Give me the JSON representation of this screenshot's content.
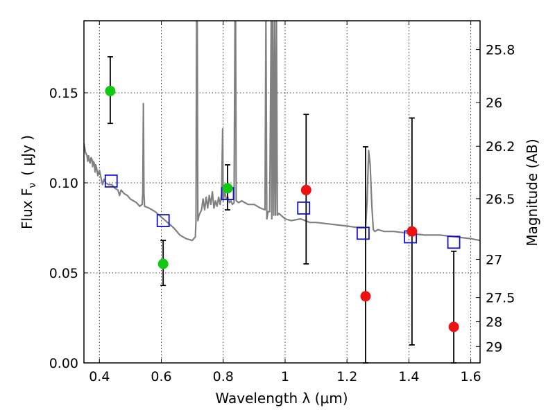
{
  "chart_data": {
    "type": "scatter",
    "xlabel": "Wavelength  λ (μm)",
    "ylabel": "Flux  F",
    "ylabel_sub": "ν",
    "ylabel_unit": "( μJy )",
    "y2label": "Magnitude (AB)",
    "xlim": [
      0.35,
      1.63
    ],
    "ylim": [
      0.0,
      0.19
    ],
    "x_ticks": [
      0.4,
      0.6,
      0.8,
      1.0,
      1.2,
      1.4,
      1.6
    ],
    "x_tick_labels": [
      "0.4",
      "0.6",
      "0.8",
      "1",
      "1.2",
      "1.4",
      "1.6"
    ],
    "y_ticks": [
      0.0,
      0.05,
      0.1,
      0.15
    ],
    "y_tick_labels": [
      "0.00",
      "0.05",
      "0.10",
      "0.15"
    ],
    "grid": true,
    "mag_ticks": [
      {
        "label": "25.8",
        "y": 0.174
      },
      {
        "label": "26",
        "y": 0.1446
      },
      {
        "label": "26.2",
        "y": 0.1203
      },
      {
        "label": "26.5",
        "y": 0.0912
      },
      {
        "label": "27",
        "y": 0.0575
      },
      {
        "label": "27.5",
        "y": 0.0363
      },
      {
        "label": "28",
        "y": 0.0229
      },
      {
        "label": "29",
        "y": 0.0091
      }
    ],
    "series": [
      {
        "marker": "circle",
        "color": "#12c812",
        "points": [
          {
            "x": 0.435,
            "y": 0.151,
            "ylo": 0.133,
            "yhi": 0.17
          },
          {
            "x": 0.606,
            "y": 0.055,
            "ylo": 0.043,
            "yhi": 0.068
          },
          {
            "x": 0.814,
            "y": 0.097,
            "ylo": 0.085,
            "yhi": 0.11
          }
        ]
      },
      {
        "marker": "circle",
        "color": "#ee1111",
        "points": [
          {
            "x": 1.068,
            "y": 0.096,
            "ylo": 0.055,
            "yhi": 0.138
          },
          {
            "x": 1.26,
            "y": 0.037,
            "ylo": 0.0,
            "yhi": 0.12
          },
          {
            "x": 1.41,
            "y": 0.073,
            "ylo": 0.01,
            "yhi": 0.136
          },
          {
            "x": 1.545,
            "y": 0.02,
            "ylo": 0.0,
            "yhi": 0.062
          }
        ]
      },
      {
        "marker": "square-open",
        "color": "#1010cc",
        "points": [
          {
            "x": 0.438,
            "y": 0.101
          },
          {
            "x": 0.606,
            "y": 0.079
          },
          {
            "x": 0.814,
            "y": 0.094
          },
          {
            "x": 1.06,
            "y": 0.086
          },
          {
            "x": 1.252,
            "y": 0.072
          },
          {
            "x": 1.405,
            "y": 0.07
          },
          {
            "x": 1.545,
            "y": 0.067
          }
        ]
      }
    ],
    "model_spectrum": {
      "color": "#808080",
      "points": [
        [
          0.35,
          0.122
        ],
        [
          0.355,
          0.117
        ],
        [
          0.36,
          0.115
        ],
        [
          0.362,
          0.112
        ],
        [
          0.365,
          0.115
        ],
        [
          0.368,
          0.112
        ],
        [
          0.37,
          0.111
        ],
        [
          0.373,
          0.114
        ],
        [
          0.376,
          0.113
        ],
        [
          0.378,
          0.109
        ],
        [
          0.38,
          0.112
        ],
        [
          0.383,
          0.111
        ],
        [
          0.386,
          0.106
        ],
        [
          0.388,
          0.11
        ],
        [
          0.391,
          0.108
        ],
        [
          0.395,
          0.104
        ],
        [
          0.4,
          0.107
        ],
        [
          0.405,
          0.103
        ],
        [
          0.41,
          0.099
        ],
        [
          0.415,
          0.102
        ],
        [
          0.42,
          0.1
        ],
        [
          0.43,
          0.099
        ],
        [
          0.44,
          0.099
        ],
        [
          0.45,
          0.097
        ],
        [
          0.46,
          0.096
        ],
        [
          0.465,
          0.093
        ],
        [
          0.47,
          0.096
        ],
        [
          0.48,
          0.094
        ],
        [
          0.49,
          0.093
        ],
        [
          0.5,
          0.091
        ],
        [
          0.51,
          0.09
        ],
        [
          0.52,
          0.089
        ],
        [
          0.53,
          0.087
        ],
        [
          0.538,
          0.088
        ],
        [
          0.54,
          0.094
        ],
        [
          0.542,
          0.144
        ],
        [
          0.544,
          0.094
        ],
        [
          0.546,
          0.087
        ],
        [
          0.56,
          0.086
        ],
        [
          0.58,
          0.084
        ],
        [
          0.6,
          0.081
        ],
        [
          0.62,
          0.078
        ],
        [
          0.64,
          0.075
        ],
        [
          0.66,
          0.071
        ],
        [
          0.68,
          0.069
        ],
        [
          0.7,
          0.068
        ],
        [
          0.71,
          0.07
        ],
        [
          0.712,
          0.079
        ],
        [
          0.714,
          0.19
        ],
        [
          0.716,
          0.19
        ],
        [
          0.718,
          0.079
        ],
        [
          0.722,
          0.082
        ],
        [
          0.73,
          0.085
        ],
        [
          0.735,
          0.091
        ],
        [
          0.74,
          0.085
        ],
        [
          0.745,
          0.092
        ],
        [
          0.75,
          0.086
        ],
        [
          0.755,
          0.093
        ],
        [
          0.76,
          0.088
        ],
        [
          0.765,
          0.095
        ],
        [
          0.77,
          0.086
        ],
        [
          0.775,
          0.09
        ],
        [
          0.78,
          0.087
        ],
        [
          0.785,
          0.092
        ],
        [
          0.79,
          0.088
        ],
        [
          0.795,
          0.094
        ],
        [
          0.798,
          0.13
        ],
        [
          0.8,
          0.09
        ],
        [
          0.805,
          0.095
        ],
        [
          0.81,
          0.091
        ],
        [
          0.815,
          0.092
        ],
        [
          0.82,
          0.089
        ],
        [
          0.825,
          0.09
        ],
        [
          0.83,
          0.088
        ],
        [
          0.835,
          0.089
        ],
        [
          0.838,
          0.19
        ],
        [
          0.84,
          0.19
        ],
        [
          0.842,
          0.09
        ],
        [
          0.85,
          0.089
        ],
        [
          0.86,
          0.09
        ],
        [
          0.88,
          0.088
        ],
        [
          0.9,
          0.088
        ],
        [
          0.92,
          0.086
        ],
        [
          0.935,
          0.085
        ],
        [
          0.938,
          0.19
        ],
        [
          0.941,
          0.08
        ],
        [
          0.945,
          0.084
        ],
        [
          0.95,
          0.084
        ],
        [
          0.955,
          0.19
        ],
        [
          0.957,
          0.08
        ],
        [
          0.96,
          0.19
        ],
        [
          0.963,
          0.082
        ],
        [
          0.966,
          0.19
        ],
        [
          0.969,
          0.082
        ],
        [
          0.972,
          0.19
        ],
        [
          0.975,
          0.082
        ],
        [
          0.98,
          0.083
        ],
        [
          1.0,
          0.08
        ],
        [
          1.02,
          0.079
        ],
        [
          1.05,
          0.08
        ],
        [
          1.08,
          0.078
        ],
        [
          1.1,
          0.078
        ],
        [
          1.15,
          0.077
        ],
        [
          1.2,
          0.076
        ],
        [
          1.24,
          0.075
        ],
        [
          1.26,
          0.075
        ],
        [
          1.265,
          0.09
        ],
        [
          1.27,
          0.118
        ],
        [
          1.275,
          0.11
        ],
        [
          1.28,
          0.088
        ],
        [
          1.285,
          0.074
        ],
        [
          1.29,
          0.073
        ],
        [
          1.3,
          0.074
        ],
        [
          1.32,
          0.073
        ],
        [
          1.35,
          0.073
        ],
        [
          1.4,
          0.072
        ],
        [
          1.45,
          0.071
        ],
        [
          1.5,
          0.071
        ],
        [
          1.55,
          0.07
        ],
        [
          1.6,
          0.069
        ],
        [
          1.63,
          0.068
        ]
      ]
    }
  }
}
